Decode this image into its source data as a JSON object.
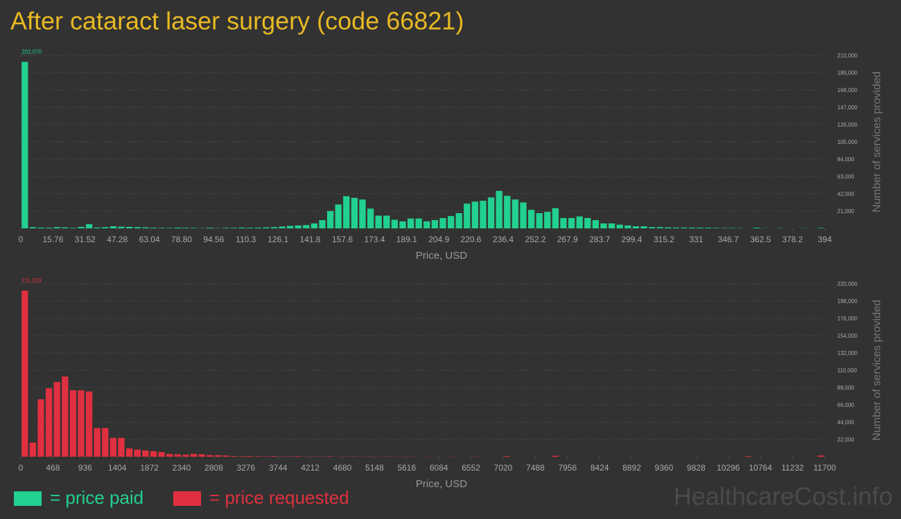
{
  "chart_data": [
    {
      "type": "histogram",
      "title": "After cataract laser surgery (code 66821)",
      "x_label": "Price, USD",
      "y_label": "Number of services provided",
      "bins": [
        0,
        3.94,
        7.88,
        11.82,
        15.76,
        19.7,
        23.64,
        27.58,
        31.52,
        35.46,
        39.4,
        43.34,
        47.28,
        51.22,
        55.16,
        59.1,
        63.04,
        66.98,
        70.92,
        74.86,
        78.8,
        82.74,
        86.68,
        90.62,
        94.56,
        98.5,
        102.44,
        106.38,
        110.32,
        114.26,
        118.2,
        122.14,
        126.08,
        130.02,
        133.96,
        137.9,
        141.84,
        145.78,
        149.72,
        153.66,
        157.6,
        161.54,
        165.48,
        169.42,
        173.36,
        177.3,
        181.24,
        185.18,
        189.12,
        193.06,
        197,
        200.94,
        204.88,
        208.82,
        212.76,
        216.7,
        220.64,
        224.58,
        228.52,
        232.46,
        236.4,
        240.34,
        244.28,
        248.22,
        252.16,
        256.1,
        260.04,
        263.98,
        267.92,
        271.86,
        275.8,
        279.74,
        283.68,
        287.62,
        291.56,
        295.5,
        299.44,
        303.38,
        307.32,
        311.26,
        315.2,
        319.14,
        323.08,
        327.02,
        330.96,
        334.9,
        338.84,
        342.78,
        346.72,
        350.66,
        354.6,
        358.54,
        362.48,
        366.42,
        370.36,
        374.3,
        378.24,
        382.18,
        386.12,
        390.06,
        394
      ],
      "series": [
        {
          "name": "= price paid",
          "color": "#22d08f",
          "values": [
            202070,
            1500,
            1000,
            800,
            1500,
            1200,
            600,
            1800,
            5000,
            1000,
            1500,
            2500,
            2000,
            1800,
            1500,
            1200,
            800,
            600,
            500,
            900,
            700,
            600,
            300,
            800,
            300,
            600,
            700,
            1000,
            800,
            900,
            1200,
            1500,
            2200,
            3000,
            3500,
            4000,
            6000,
            10000,
            21000,
            29000,
            39000,
            37000,
            35000,
            24000,
            15500,
            15500,
            10500,
            8500,
            12000,
            12000,
            8500,
            10000,
            12500,
            15000,
            18500,
            30000,
            32500,
            33500,
            37500,
            45500,
            39500,
            35000,
            31500,
            22500,
            18500,
            20000,
            24500,
            12500,
            12500,
            14500,
            12500,
            10000,
            6000,
            6000,
            4500,
            3500,
            2500,
            2500,
            1500,
            1500,
            1200,
            1000,
            1000,
            900,
            900,
            800,
            600,
            400,
            500,
            300,
            0,
            800,
            200,
            0,
            300,
            0,
            0,
            200,
            0,
            500
          ],
          "value_labels": {
            "0": "202,070"
          }
        }
      ],
      "xlim": [
        0,
        394
      ],
      "xticks": [
        0,
        15.76,
        31.52,
        47.28,
        63.04,
        {
          "value": 78.8,
          "label": "78.80"
        },
        94.56,
        110.3,
        126.1,
        141.8,
        157.6,
        173.4,
        189.1,
        204.9,
        220.6,
        236.4,
        252.2,
        267.9,
        283.7,
        299.4,
        315.2,
        331,
        346.7,
        362.5,
        378.2,
        394
      ],
      "ylim": [
        0,
        210000
      ],
      "yticks": [
        {
          "value": 21000,
          "label": "21,000"
        },
        {
          "value": 42000,
          "label": "42,000"
        },
        {
          "value": 63000,
          "label": "63,000"
        },
        {
          "value": 84000,
          "label": "84,000"
        },
        {
          "value": 105000,
          "label": "105,000"
        },
        {
          "value": 126000,
          "label": "126,000"
        },
        {
          "value": 147000,
          "label": "147,000"
        },
        {
          "value": 168000,
          "label": "168,000"
        },
        {
          "value": 189000,
          "label": "189,000"
        },
        {
          "value": 210000,
          "label": "210,000"
        }
      ],
      "grid": true
    },
    {
      "type": "histogram",
      "x_label": "Price, USD",
      "y_label": "Number of services provided",
      "bins": [
        0,
        117,
        234,
        351,
        468,
        585,
        702,
        819,
        936,
        1053,
        1170,
        1287,
        1404,
        1521,
        1638,
        1755,
        1872,
        1989,
        2106,
        2223,
        2340,
        2457,
        2574,
        2691,
        2808,
        2925,
        3042,
        3159,
        3276,
        3393,
        3510,
        3627,
        3744,
        3861,
        3978,
        4095,
        4212,
        4329,
        4446,
        4563,
        4680,
        4797,
        4914,
        5031,
        5148,
        5265,
        5382,
        5499,
        5616,
        5733,
        5850,
        5967,
        6084,
        6201,
        6318,
        6435,
        6552,
        6669,
        6786,
        6903,
        7020,
        7137,
        7254,
        7371,
        7488,
        7605,
        7722,
        7839,
        7956,
        8073,
        8190,
        8307,
        8424,
        8541,
        8658,
        8775,
        8892,
        9009,
        9126,
        9243,
        9360,
        9477,
        9594,
        9711,
        9828,
        9945,
        10062,
        10179,
        10296,
        10413,
        10530,
        10647,
        10764,
        10881,
        10998,
        11115,
        11232,
        11349,
        11466,
        11583,
        11700
      ],
      "series": [
        {
          "name": "= price requested",
          "color": "#e0303f",
          "values": [
            211229,
            18000,
            73000,
            87000,
            95000,
            102000,
            84500,
            84500,
            83000,
            36500,
            36500,
            24000,
            24000,
            10500,
            9000,
            8000,
            7000,
            6000,
            3500,
            3000,
            2500,
            3500,
            3000,
            2000,
            2000,
            1500,
            900,
            700,
            800,
            600,
            500,
            700,
            400,
            500,
            600,
            300,
            400,
            300,
            500,
            200,
            300,
            400,
            200,
            300,
            200,
            300,
            200,
            200,
            300,
            100,
            200,
            100,
            0,
            200,
            100,
            100,
            300,
            100,
            0,
            0,
            800,
            0,
            100,
            0,
            0,
            0,
            1200,
            0,
            0,
            0,
            0,
            0,
            0,
            0,
            0,
            100,
            0,
            0,
            0,
            0,
            0,
            0,
            100,
            0,
            0,
            0,
            0,
            0,
            0,
            0,
            800,
            0,
            0,
            0,
            0,
            0,
            0,
            0,
            0,
            1500
          ],
          "value_labels": {
            "0": "211,229"
          }
        }
      ],
      "xlim": [
        0,
        11700
      ],
      "xticks": [
        0,
        468,
        936,
        1404,
        1872,
        2340,
        2808,
        3276,
        3744,
        4212,
        4680,
        5148,
        5616,
        6084,
        6552,
        7020,
        7488,
        7956,
        8424,
        8892,
        9360,
        9828,
        10296,
        10764,
        11232,
        11700
      ],
      "ylim": [
        0,
        220000
      ],
      "yticks": [
        {
          "value": 22000,
          "label": "22,000"
        },
        {
          "value": 44000,
          "label": "44,000"
        },
        {
          "value": 66000,
          "label": "66,000"
        },
        {
          "value": 88000,
          "label": "88,000"
        },
        {
          "value": 110000,
          "label": "110,000"
        },
        {
          "value": 132000,
          "label": "132,000"
        },
        {
          "value": 154000,
          "label": "154,000"
        },
        {
          "value": 176000,
          "label": "176,000"
        },
        {
          "value": 198000,
          "label": "198,000"
        },
        {
          "value": 220000,
          "label": "220,000"
        }
      ],
      "grid": true
    }
  ],
  "watermark": "HealthcareCost.info"
}
